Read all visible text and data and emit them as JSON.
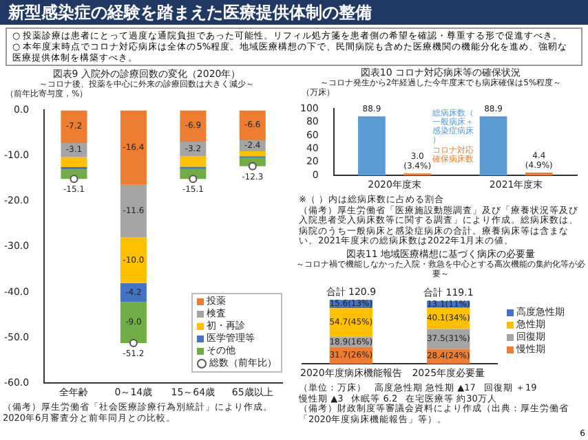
{
  "chart_data": [
    {
      "type": "other",
      "title": "新型感染症の経験を踏まえた医療提供体制の整備",
      "annotations": [
        "○ 投薬診療は患者にとって過度な通院負担であった可能性。リフィル処方箋を患者側の希望を確認・尊重する形で促進すべき。",
        "○ 本年度末時点でコロナ対応病床は全体の5%程度。地域医療構想の下で、民間病院も含めた医療機関の機能分化を進め、強靭な医療提供体制を構築すべき。",
        "6"
      ]
    },
    {
      "type": "bar",
      "stacked": true,
      "title": "図表9 入院外の診療回数の変化（2020年）",
      "subtitle": "～コロナ後、投薬を中心に外来の診療回数は大きく減少～",
      "ylabel": "（前年比寄与度，%）",
      "categories": [
        "全年齢",
        "0～14歳",
        "15～64歳",
        "65歳以上"
      ],
      "series": [
        {
          "name": "投薬",
          "color": "#ed7d31",
          "values": [
            -7.2,
            -16.4,
            -6.9,
            -6.6
          ],
          "value_labels": [
            "-7.2",
            "-16.4",
            "-6.9",
            "-6.6"
          ]
        },
        {
          "name": "検査",
          "color": "#a5a5a5",
          "values": [
            -3.1,
            -11.6,
            -3.2,
            -2.4
          ],
          "value_labels": [
            "-3.1",
            "-11.6",
            "-3.2",
            "-2.4"
          ]
        },
        {
          "name": "初・再診",
          "color": "#ffc000",
          "values": [
            -2.2,
            -10.0,
            -2.3,
            -1.1
          ],
          "value_labels": [
            null,
            "-10.0",
            null,
            null
          ]
        },
        {
          "name": "医学管理等",
          "color": "#4472c4",
          "values": [
            -0.5,
            -4.2,
            -0.5,
            -0.4
          ],
          "value_labels": [
            null,
            "-4.2",
            null,
            null
          ]
        },
        {
          "name": "その他",
          "color": "#70ad47",
          "values": [
            -2.1,
            -9.0,
            -2.2,
            -1.8
          ],
          "value_labels": [
            null,
            "-9.0",
            null,
            null
          ]
        },
        {
          "name": "総数（前年比）",
          "type": "scatter",
          "marker": "circle",
          "color": "#ffffff",
          "x": [
            "全年齢",
            "0～14歳",
            "15～64歳",
            "65歳以上"
          ],
          "values": [
            -15.1,
            -51.2,
            -15.1,
            -12.3
          ],
          "value_labels": [
            "-15.1",
            "-51.2",
            "-15.1",
            "-12.3"
          ]
        }
      ],
      "ylim": [
        -60,
        0
      ],
      "yticks": [
        {
          "value": 0,
          "label": "0.0"
        },
        {
          "value": -10,
          "label": "-10.0"
        },
        {
          "value": -20,
          "label": "-20.0"
        },
        {
          "value": -30,
          "label": "-30.0"
        },
        {
          "value": -40,
          "label": "-40.0"
        },
        {
          "value": -50,
          "label": "-50.0"
        },
        {
          "value": -60,
          "label": "-60.0"
        }
      ],
      "legend": "bottom right",
      "annotations": [
        "（備考）厚生労働省「社会医療診療行為別統計」により作成。2020年6月審査分と前年同月との比較。"
      ]
    },
    {
      "type": "bar",
      "title": "図表10 コロナ対応病床等の確保状況",
      "subtitle": "～コロナ発生から2年経過した今年度末でも病床確保は5%程度～",
      "ylabel": "（万床）",
      "categories": [
        "2020年度末",
        "2021年度末"
      ],
      "series": [
        {
          "name": "総病床数（一般病床＋感染症病床）",
          "color": "#5b9bd5",
          "values": [
            88.9,
            88.9
          ],
          "value_labels": [
            "88.9",
            "88.9"
          ]
        },
        {
          "name": "コロナ対応確保病床数",
          "color": "#ed7d31",
          "values": [
            3.0,
            4.4
          ],
          "value_labels": [
            "3.0\n(3.4%)",
            "4.4\n(4.9%)"
          ]
        }
      ],
      "ylim": [
        0,
        100
      ],
      "yticks": [
        0,
        20,
        40,
        60,
        80,
        100
      ],
      "annotations": [
        "※（ ）内は総病床数に占める割合",
        "（備考）厚生労働省「医療施設動態調査」及び「療養状況等及び入院患者受入病床数等に関する調査」により作成。総病床数は、病院のうち一般病床と感染症病床の合計。療養病床等は含まない。2021年度末の総病床数は2022年1月末の値。"
      ]
    },
    {
      "type": "bar",
      "stacked": true,
      "title": "図表11 地域医療構想に基づく病床の必要量",
      "subtitle": "～コロナ禍で機能しなかった入院・救急を中心とする高次機能の集約化等が必要～",
      "categories": [
        "2020年度病床機能報告",
        "2025年度必要量"
      ],
      "tick_labels": "x",
      "series": [
        {
          "name": "慢性期",
          "color": "#ed7d31",
          "values": [
            31.7,
            28.4
          ],
          "value_labels": [
            "31.7(26%)",
            "28.4(24%)"
          ]
        },
        {
          "name": "回復期",
          "color": "#a5a5a5",
          "values": [
            18.9,
            37.5
          ],
          "value_labels": [
            "18.9(16%)",
            "37.5(31%)"
          ]
        },
        {
          "name": "急性期",
          "color": "#ffc000",
          "values": [
            54.7,
            40.1
          ],
          "value_labels": [
            "54.7(45%)",
            "40.1(34%)"
          ]
        },
        {
          "name": "高度急性期",
          "color": "#4472c4",
          "values": [
            15.6,
            13.1
          ],
          "value_labels": [
            "15.6(13%)",
            "13.1(11%)"
          ]
        }
      ],
      "totals": [
        "合計 120.9",
        "合計 119.1"
      ],
      "legend": "right",
      "annotations": [
        "（単位：万床）",
        "高度急性期 急性期 ▲17",
        "回復期 ＋19",
        "慢性期 ▲3",
        "休眠等 6.2",
        "在宅医療等 約30万人",
        "（備考）財政制度等審議会資料により作成（出典：厚生労働省「2020年度病床機能報告」等）。"
      ]
    }
  ]
}
